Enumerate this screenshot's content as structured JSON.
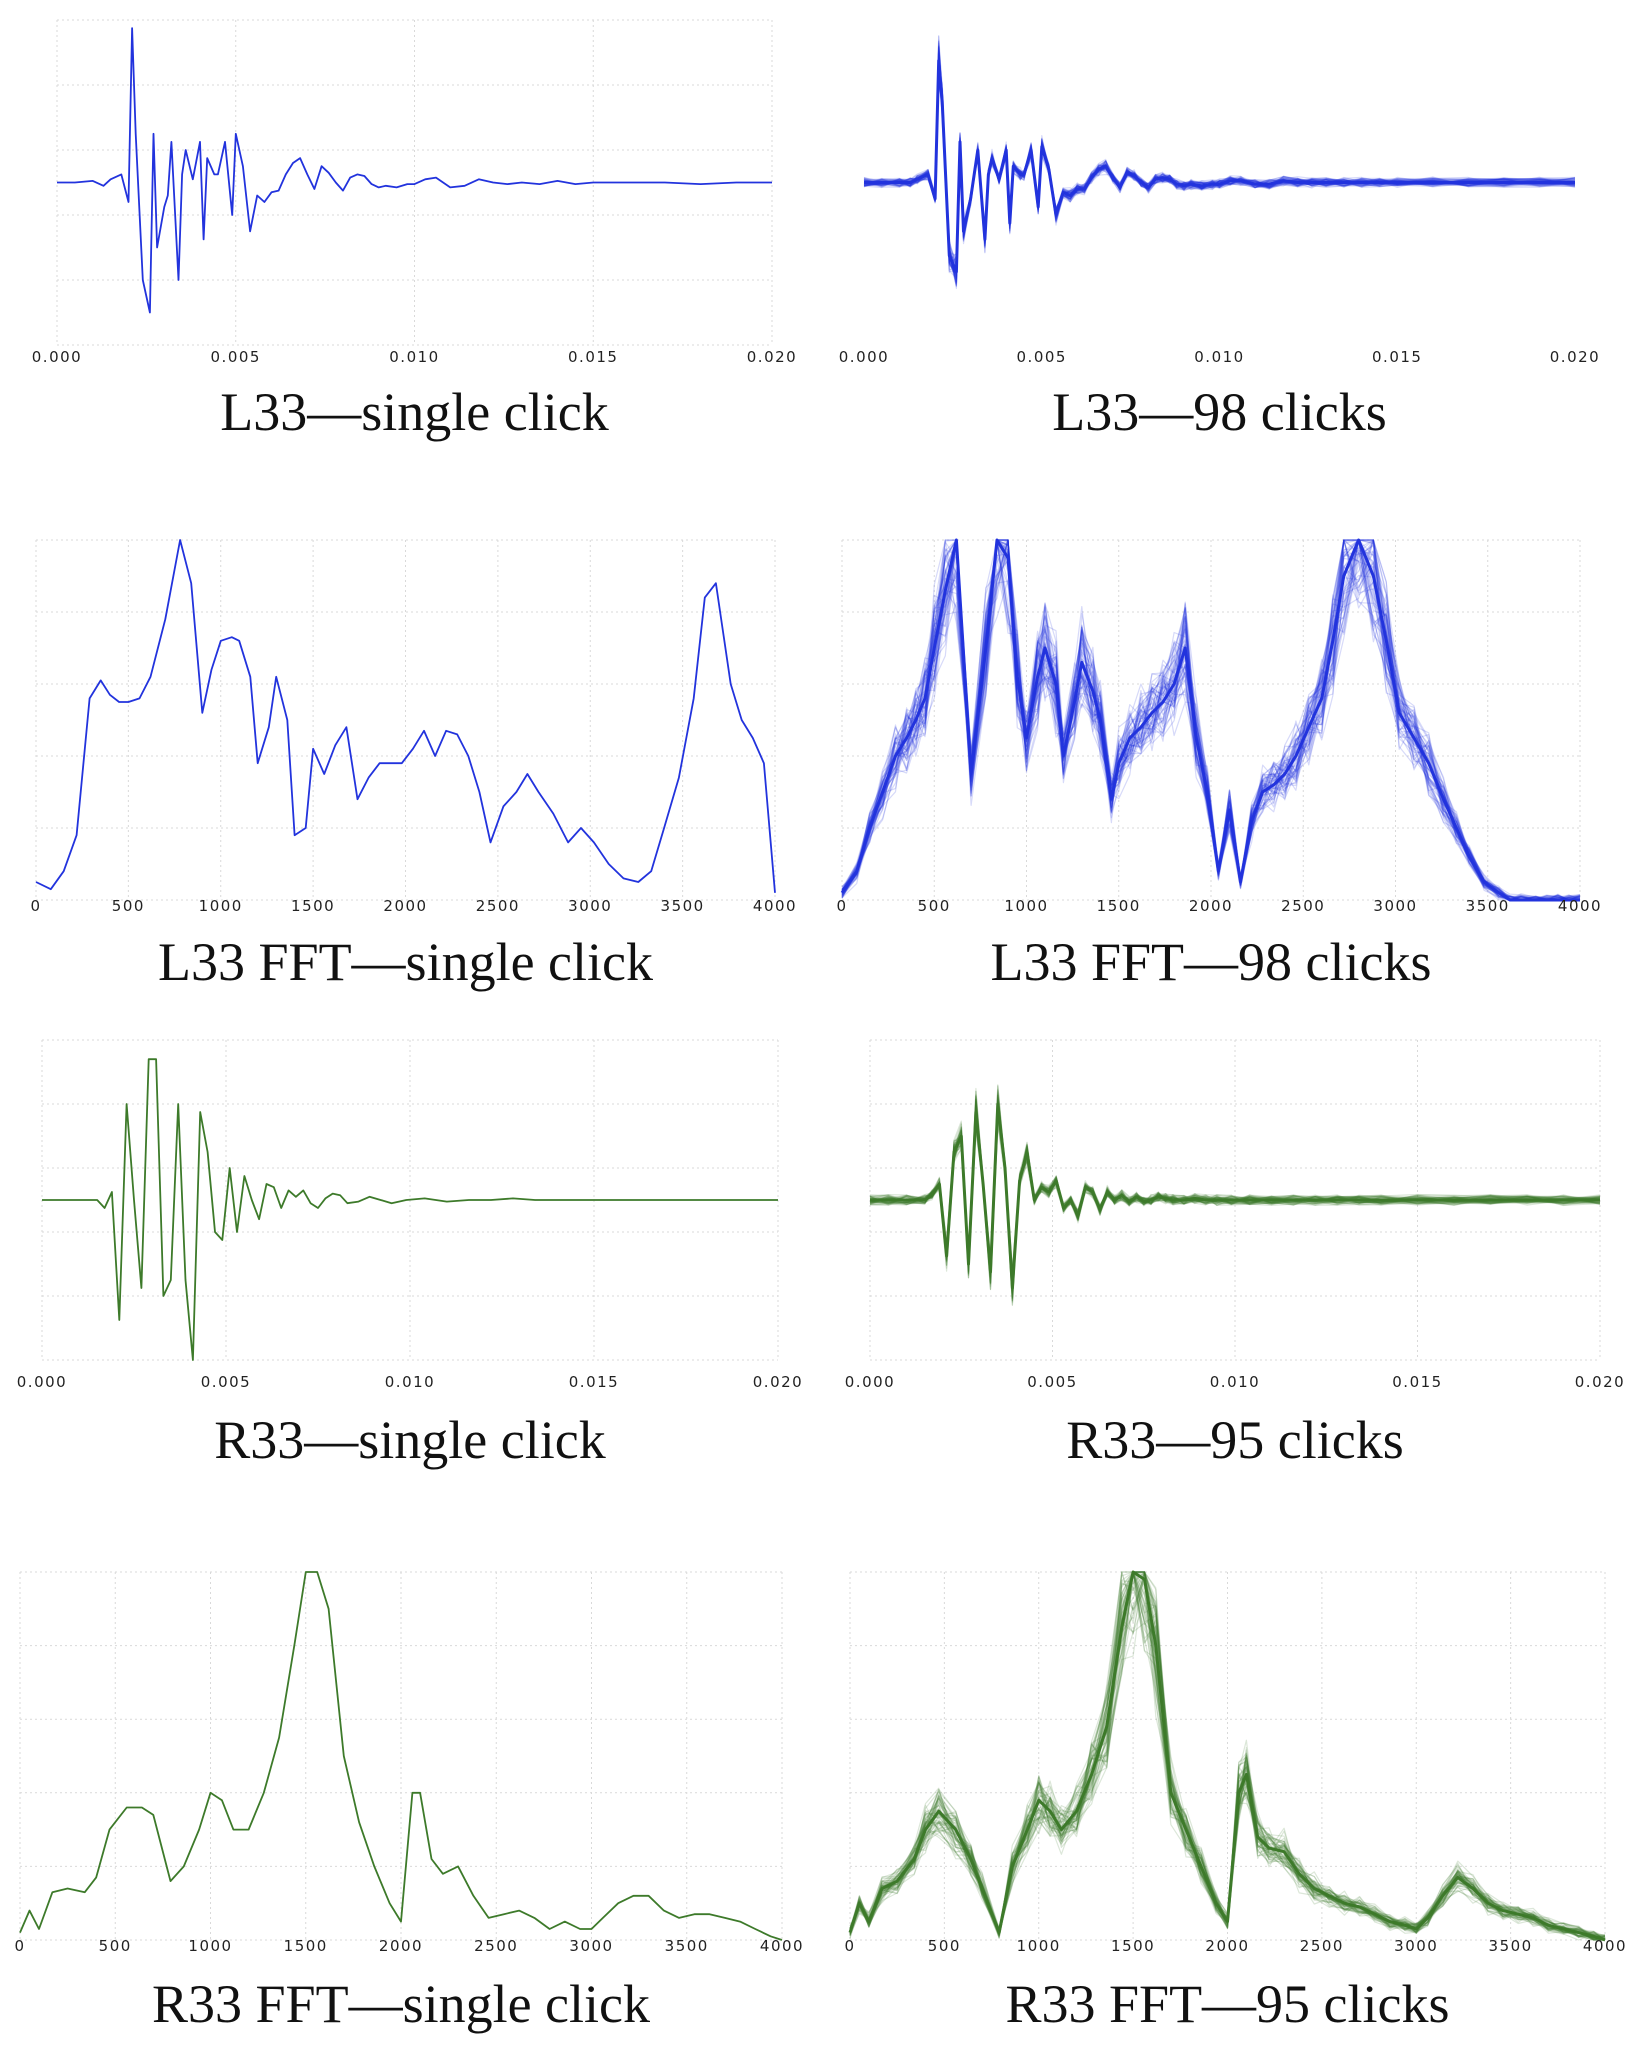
{
  "colors": {
    "blue": "#2233dd",
    "green": "#3d7a2a",
    "grid": "#d9d9d9"
  },
  "chart_data": [
    {
      "type": "line",
      "title": "L33—single click",
      "xticks": [
        "0.000",
        "0.005",
        "0.010",
        "0.015",
        "0.020"
      ],
      "xlim": [
        0,
        0.02
      ],
      "ylim": [
        -1.0,
        1.0
      ],
      "grid": true,
      "color": "blue",
      "traces": 1,
      "x": [
        0.0,
        0.0005,
        0.001,
        0.0013,
        0.0015,
        0.0018,
        0.002,
        0.0021,
        0.0022,
        0.0024,
        0.0026,
        0.0027,
        0.0028,
        0.003,
        0.0031,
        0.0032,
        0.0034,
        0.0035,
        0.0036,
        0.0038,
        0.004,
        0.0041,
        0.0042,
        0.0044,
        0.0045,
        0.0047,
        0.0049,
        0.005,
        0.0052,
        0.0054,
        0.0056,
        0.0058,
        0.006,
        0.0062,
        0.0064,
        0.0066,
        0.0068,
        0.007,
        0.0072,
        0.0074,
        0.0076,
        0.0078,
        0.008,
        0.0082,
        0.0084,
        0.0086,
        0.0088,
        0.009,
        0.0092,
        0.0095,
        0.0098,
        0.01,
        0.0103,
        0.0106,
        0.011,
        0.0114,
        0.0118,
        0.0122,
        0.0126,
        0.013,
        0.0135,
        0.014,
        0.0145,
        0.015,
        0.016,
        0.017,
        0.018,
        0.019,
        0.02
      ],
      "y": [
        0.0,
        0.0,
        0.01,
        -0.02,
        0.02,
        0.05,
        -0.12,
        0.95,
        0.3,
        -0.6,
        -0.8,
        0.3,
        -0.4,
        -0.15,
        -0.08,
        0.25,
        -0.6,
        0.05,
        0.2,
        0.02,
        0.25,
        -0.35,
        0.15,
        0.05,
        0.05,
        0.25,
        -0.2,
        0.3,
        0.1,
        -0.3,
        -0.08,
        -0.12,
        -0.06,
        -0.05,
        0.05,
        0.12,
        0.15,
        0.05,
        -0.04,
        0.1,
        0.06,
        0.0,
        -0.05,
        0.03,
        0.05,
        0.04,
        -0.01,
        -0.03,
        -0.02,
        -0.03,
        -0.01,
        -0.01,
        0.02,
        0.03,
        -0.03,
        -0.02,
        0.02,
        0.0,
        -0.01,
        0.0,
        -0.01,
        0.01,
        -0.01,
        0.0,
        0.0,
        0.0,
        -0.01,
        0.0,
        0.0
      ]
    },
    {
      "type": "line",
      "title": "L33—98 clicks",
      "xticks": [
        "0.000",
        "0.005",
        "0.010",
        "0.015",
        "0.020"
      ],
      "xlim": [
        0,
        0.02
      ],
      "ylim": [
        -1.0,
        1.0
      ],
      "grid": false,
      "color": "blue",
      "traces": 98,
      "x": [
        0.0,
        0.0005,
        0.001,
        0.0013,
        0.0015,
        0.0018,
        0.002,
        0.0021,
        0.0022,
        0.0024,
        0.0026,
        0.0027,
        0.0028,
        0.003,
        0.0031,
        0.0032,
        0.0034,
        0.0035,
        0.0036,
        0.0038,
        0.004,
        0.0041,
        0.0042,
        0.0044,
        0.0045,
        0.0047,
        0.0049,
        0.005,
        0.0052,
        0.0054,
        0.0056,
        0.0058,
        0.006,
        0.0062,
        0.0064,
        0.0066,
        0.0068,
        0.007,
        0.0072,
        0.0074,
        0.0076,
        0.0078,
        0.008,
        0.0082,
        0.0084,
        0.0086,
        0.0088,
        0.009,
        0.0092,
        0.0095,
        0.0098,
        0.01,
        0.0103,
        0.0106,
        0.011,
        0.0114,
        0.0118,
        0.0122,
        0.0126,
        0.013,
        0.0135,
        0.014,
        0.0145,
        0.015,
        0.016,
        0.017,
        0.018,
        0.019,
        0.02
      ],
      "y": [
        0.0,
        0.0,
        0.0,
        0.0,
        0.02,
        0.05,
        -0.1,
        0.75,
        0.5,
        -0.45,
        -0.55,
        0.25,
        -0.3,
        -0.1,
        0.05,
        0.2,
        -0.35,
        0.05,
        0.15,
        0.02,
        0.2,
        -0.25,
        0.1,
        0.05,
        0.05,
        0.2,
        -0.15,
        0.22,
        0.08,
        -0.2,
        -0.06,
        -0.08,
        -0.04,
        -0.04,
        0.03,
        0.08,
        0.1,
        0.03,
        -0.03,
        0.06,
        0.04,
        0.0,
        -0.03,
        0.02,
        0.03,
        0.02,
        -0.01,
        -0.02,
        -0.01,
        -0.02,
        -0.01,
        -0.01,
        0.01,
        0.01,
        -0.01,
        -0.01,
        0.01,
        0.0,
        0.0,
        0.0,
        0.0,
        0.0,
        0.0,
        0.0,
        0.0,
        0.0,
        0.0,
        0.0,
        0.0
      ]
    },
    {
      "type": "line",
      "title": "L33 FFT—single click",
      "xticks": [
        "0",
        "500",
        "1000",
        "1500",
        "2000",
        "2500",
        "3000",
        "3500",
        "4000"
      ],
      "xlim": [
        0,
        4000
      ],
      "ylim": [
        0,
        1.0
      ],
      "grid": true,
      "color": "blue",
      "traces": 1,
      "x": [
        0,
        80,
        150,
        220,
        290,
        350,
        400,
        450,
        500,
        560,
        620,
        700,
        780,
        840,
        900,
        950,
        1000,
        1060,
        1100,
        1160,
        1200,
        1260,
        1300,
        1360,
        1400,
        1460,
        1500,
        1560,
        1620,
        1680,
        1740,
        1800,
        1860,
        1920,
        1980,
        2040,
        2100,
        2160,
        2220,
        2280,
        2340,
        2400,
        2460,
        2530,
        2600,
        2660,
        2720,
        2800,
        2880,
        2950,
        3020,
        3100,
        3180,
        3260,
        3330,
        3400,
        3480,
        3560,
        3620,
        3680,
        3760,
        3820,
        3880,
        3940,
        4000
      ],
      "y": [
        0.05,
        0.03,
        0.08,
        0.18,
        0.56,
        0.61,
        0.57,
        0.55,
        0.55,
        0.56,
        0.62,
        0.78,
        1.0,
        0.88,
        0.52,
        0.64,
        0.72,
        0.73,
        0.72,
        0.62,
        0.38,
        0.48,
        0.62,
        0.5,
        0.18,
        0.2,
        0.42,
        0.35,
        0.43,
        0.48,
        0.28,
        0.34,
        0.38,
        0.38,
        0.38,
        0.42,
        0.47,
        0.4,
        0.47,
        0.46,
        0.4,
        0.3,
        0.16,
        0.26,
        0.3,
        0.35,
        0.3,
        0.24,
        0.16,
        0.2,
        0.16,
        0.1,
        0.06,
        0.05,
        0.08,
        0.2,
        0.34,
        0.56,
        0.84,
        0.88,
        0.6,
        0.5,
        0.45,
        0.38,
        0.02
      ]
    },
    {
      "type": "line",
      "title": "L33 FFT—98 clicks",
      "xticks": [
        "0",
        "500",
        "1000",
        "1500",
        "2000",
        "2500",
        "3000",
        "3500",
        "4000"
      ],
      "xlim": [
        0,
        4000
      ],
      "ylim": [
        0,
        1.0
      ],
      "grid": true,
      "color": "blue",
      "traces": 98,
      "x": [
        0,
        80,
        150,
        220,
        290,
        350,
        400,
        450,
        500,
        560,
        620,
        700,
        780,
        840,
        900,
        950,
        1000,
        1060,
        1100,
        1160,
        1200,
        1260,
        1300,
        1360,
        1400,
        1460,
        1500,
        1560,
        1620,
        1680,
        1740,
        1800,
        1860,
        1920,
        1980,
        2040,
        2100,
        2160,
        2220,
        2280,
        2340,
        2400,
        2460,
        2530,
        2600,
        2660,
        2720,
        2800,
        2880,
        2950,
        3020,
        3100,
        3180,
        3260,
        3330,
        3400,
        3480,
        3560,
        3620,
        3680,
        3760,
        3820,
        3880,
        3940,
        4000
      ],
      "y": [
        0.02,
        0.08,
        0.2,
        0.3,
        0.4,
        0.45,
        0.5,
        0.56,
        0.7,
        0.86,
        1.0,
        0.35,
        0.7,
        1.0,
        0.95,
        0.62,
        0.45,
        0.62,
        0.7,
        0.6,
        0.4,
        0.55,
        0.66,
        0.58,
        0.5,
        0.28,
        0.38,
        0.45,
        0.48,
        0.52,
        0.55,
        0.6,
        0.7,
        0.45,
        0.3,
        0.08,
        0.25,
        0.05,
        0.22,
        0.3,
        0.32,
        0.35,
        0.4,
        0.48,
        0.56,
        0.72,
        0.9,
        1.0,
        0.9,
        0.72,
        0.52,
        0.45,
        0.38,
        0.28,
        0.2,
        0.12,
        0.05,
        0.02,
        0.0,
        0.0,
        0.0,
        0.0,
        0.0,
        0.0,
        0.0
      ]
    },
    {
      "type": "line",
      "title": "R33—single click",
      "xticks": [
        "0.000",
        "0.005",
        "0.010",
        "0.015",
        "0.020"
      ],
      "xlim": [
        0,
        0.02
      ],
      "ylim": [
        -1.0,
        1.0
      ],
      "grid": true,
      "color": "green",
      "traces": 1,
      "x": [
        0.0,
        0.0005,
        0.001,
        0.0015,
        0.0017,
        0.0019,
        0.0021,
        0.0023,
        0.0025,
        0.0027,
        0.0029,
        0.0031,
        0.0033,
        0.0035,
        0.0037,
        0.0039,
        0.0041,
        0.0043,
        0.0045,
        0.0047,
        0.0049,
        0.0051,
        0.0053,
        0.0055,
        0.0057,
        0.0059,
        0.0061,
        0.0063,
        0.0065,
        0.0067,
        0.0069,
        0.0071,
        0.0073,
        0.0075,
        0.0077,
        0.0079,
        0.0081,
        0.0083,
        0.0086,
        0.0089,
        0.0092,
        0.0095,
        0.0099,
        0.0104,
        0.011,
        0.0116,
        0.0122,
        0.0128,
        0.0134,
        0.014,
        0.015,
        0.016,
        0.017,
        0.018,
        0.019,
        0.02
      ],
      "y": [
        0.0,
        0.0,
        0.0,
        0.0,
        -0.05,
        0.05,
        -0.75,
        0.6,
        0.0,
        -0.55,
        0.88,
        0.88,
        -0.6,
        -0.5,
        0.6,
        -0.5,
        -1.0,
        0.55,
        0.3,
        -0.2,
        -0.25,
        0.2,
        -0.2,
        0.15,
        0.0,
        -0.12,
        0.1,
        0.08,
        -0.05,
        0.06,
        0.02,
        0.06,
        -0.02,
        -0.05,
        0.01,
        0.04,
        0.03,
        -0.02,
        -0.01,
        0.02,
        0.0,
        -0.02,
        0.0,
        0.01,
        -0.01,
        0.0,
        0.0,
        0.01,
        0.0,
        0.0,
        0.0,
        0.0,
        0.0,
        0.0,
        0.0,
        0.0
      ]
    },
    {
      "type": "line",
      "title": "R33—95 clicks",
      "xticks": [
        "0.000",
        "0.005",
        "0.010",
        "0.015",
        "0.020"
      ],
      "xlim": [
        0,
        0.02
      ],
      "ylim": [
        -1.0,
        1.0
      ],
      "grid": true,
      "color": "green",
      "traces": 95,
      "x": [
        0.0,
        0.0005,
        0.001,
        0.0015,
        0.0017,
        0.0019,
        0.0021,
        0.0023,
        0.0025,
        0.0027,
        0.0029,
        0.0031,
        0.0033,
        0.0035,
        0.0037,
        0.0039,
        0.0041,
        0.0043,
        0.0045,
        0.0047,
        0.0049,
        0.0051,
        0.0053,
        0.0055,
        0.0057,
        0.0059,
        0.0061,
        0.0063,
        0.0065,
        0.0067,
        0.0069,
        0.0071,
        0.0073,
        0.0075,
        0.0077,
        0.0079,
        0.0081,
        0.0083,
        0.0086,
        0.0089,
        0.0092,
        0.0095,
        0.0099,
        0.0104,
        0.011,
        0.0116,
        0.0122,
        0.0128,
        0.0134,
        0.014,
        0.015,
        0.016,
        0.017,
        0.018,
        0.019,
        0.02
      ],
      "y": [
        0.0,
        0.0,
        0.0,
        0.0,
        0.03,
        0.1,
        -0.35,
        0.3,
        0.4,
        -0.4,
        0.55,
        0.1,
        -0.45,
        0.6,
        0.2,
        -0.55,
        0.12,
        0.3,
        0.0,
        0.08,
        0.05,
        0.12,
        -0.05,
        0.0,
        -0.1,
        0.08,
        0.05,
        -0.06,
        0.05,
        0.0,
        0.03,
        -0.01,
        0.02,
        -0.01,
        0.0,
        0.02,
        0.01,
        0.0,
        0.0,
        0.01,
        0.0,
        0.0,
        0.0,
        0.0,
        0.0,
        0.0,
        0.0,
        0.0,
        0.0,
        0.0,
        0.0,
        0.0,
        0.0,
        0.0,
        0.0,
        0.0
      ]
    },
    {
      "type": "line",
      "title": "R33 FFT—single click",
      "xticks": [
        "0",
        "500",
        "1000",
        "1500",
        "2000",
        "2500",
        "3000",
        "3500",
        "4000"
      ],
      "xlim": [
        0,
        4000
      ],
      "ylim": [
        0,
        1.0
      ],
      "grid": true,
      "color": "green",
      "traces": 1,
      "x": [
        0,
        50,
        100,
        170,
        250,
        340,
        400,
        470,
        560,
        640,
        700,
        790,
        860,
        940,
        1000,
        1060,
        1120,
        1200,
        1280,
        1360,
        1440,
        1500,
        1560,
        1620,
        1700,
        1780,
        1860,
        1940,
        2000,
        2060,
        2100,
        2160,
        2220,
        2300,
        2380,
        2460,
        2540,
        2620,
        2700,
        2780,
        2860,
        2940,
        3000,
        3060,
        3140,
        3220,
        3300,
        3380,
        3460,
        3540,
        3620,
        3700,
        3780,
        3860,
        3940,
        4000
      ],
      "y": [
        0.02,
        0.08,
        0.03,
        0.13,
        0.14,
        0.13,
        0.17,
        0.3,
        0.36,
        0.36,
        0.34,
        0.16,
        0.2,
        0.3,
        0.4,
        0.38,
        0.3,
        0.3,
        0.4,
        0.55,
        0.8,
        1.0,
        1.0,
        0.9,
        0.5,
        0.32,
        0.2,
        0.1,
        0.05,
        0.4,
        0.4,
        0.22,
        0.18,
        0.2,
        0.12,
        0.06,
        0.07,
        0.08,
        0.06,
        0.03,
        0.05,
        0.03,
        0.03,
        0.06,
        0.1,
        0.12,
        0.12,
        0.08,
        0.06,
        0.07,
        0.07,
        0.06,
        0.05,
        0.03,
        0.01,
        0.0
      ]
    },
    {
      "type": "line",
      "title": "R33 FFT—95 clicks",
      "xticks": [
        "0",
        "500",
        "1000",
        "1500",
        "2000",
        "2500",
        "3000",
        "3500",
        "4000"
      ],
      "xlim": [
        0,
        4000
      ],
      "ylim": [
        0,
        1.0
      ],
      "grid": true,
      "color": "green",
      "traces": 95,
      "x": [
        0,
        50,
        100,
        170,
        250,
        340,
        400,
        470,
        560,
        640,
        700,
        790,
        860,
        940,
        1000,
        1060,
        1120,
        1200,
        1280,
        1360,
        1440,
        1500,
        1560,
        1620,
        1700,
        1780,
        1860,
        1940,
        2000,
        2060,
        2100,
        2160,
        2220,
        2300,
        2380,
        2460,
        2540,
        2620,
        2700,
        2780,
        2860,
        2940,
        3000,
        3060,
        3140,
        3220,
        3300,
        3380,
        3460,
        3540,
        3620,
        3700,
        3780,
        3860,
        3940,
        4000
      ],
      "y": [
        0.02,
        0.1,
        0.05,
        0.14,
        0.16,
        0.22,
        0.3,
        0.35,
        0.3,
        0.22,
        0.14,
        0.02,
        0.2,
        0.3,
        0.38,
        0.35,
        0.3,
        0.35,
        0.45,
        0.58,
        0.85,
        1.0,
        0.98,
        0.8,
        0.4,
        0.3,
        0.2,
        0.1,
        0.05,
        0.4,
        0.45,
        0.28,
        0.25,
        0.24,
        0.18,
        0.14,
        0.12,
        0.1,
        0.09,
        0.07,
        0.05,
        0.04,
        0.03,
        0.06,
        0.12,
        0.17,
        0.14,
        0.1,
        0.08,
        0.07,
        0.06,
        0.04,
        0.03,
        0.02,
        0.01,
        0.0
      ]
    }
  ]
}
